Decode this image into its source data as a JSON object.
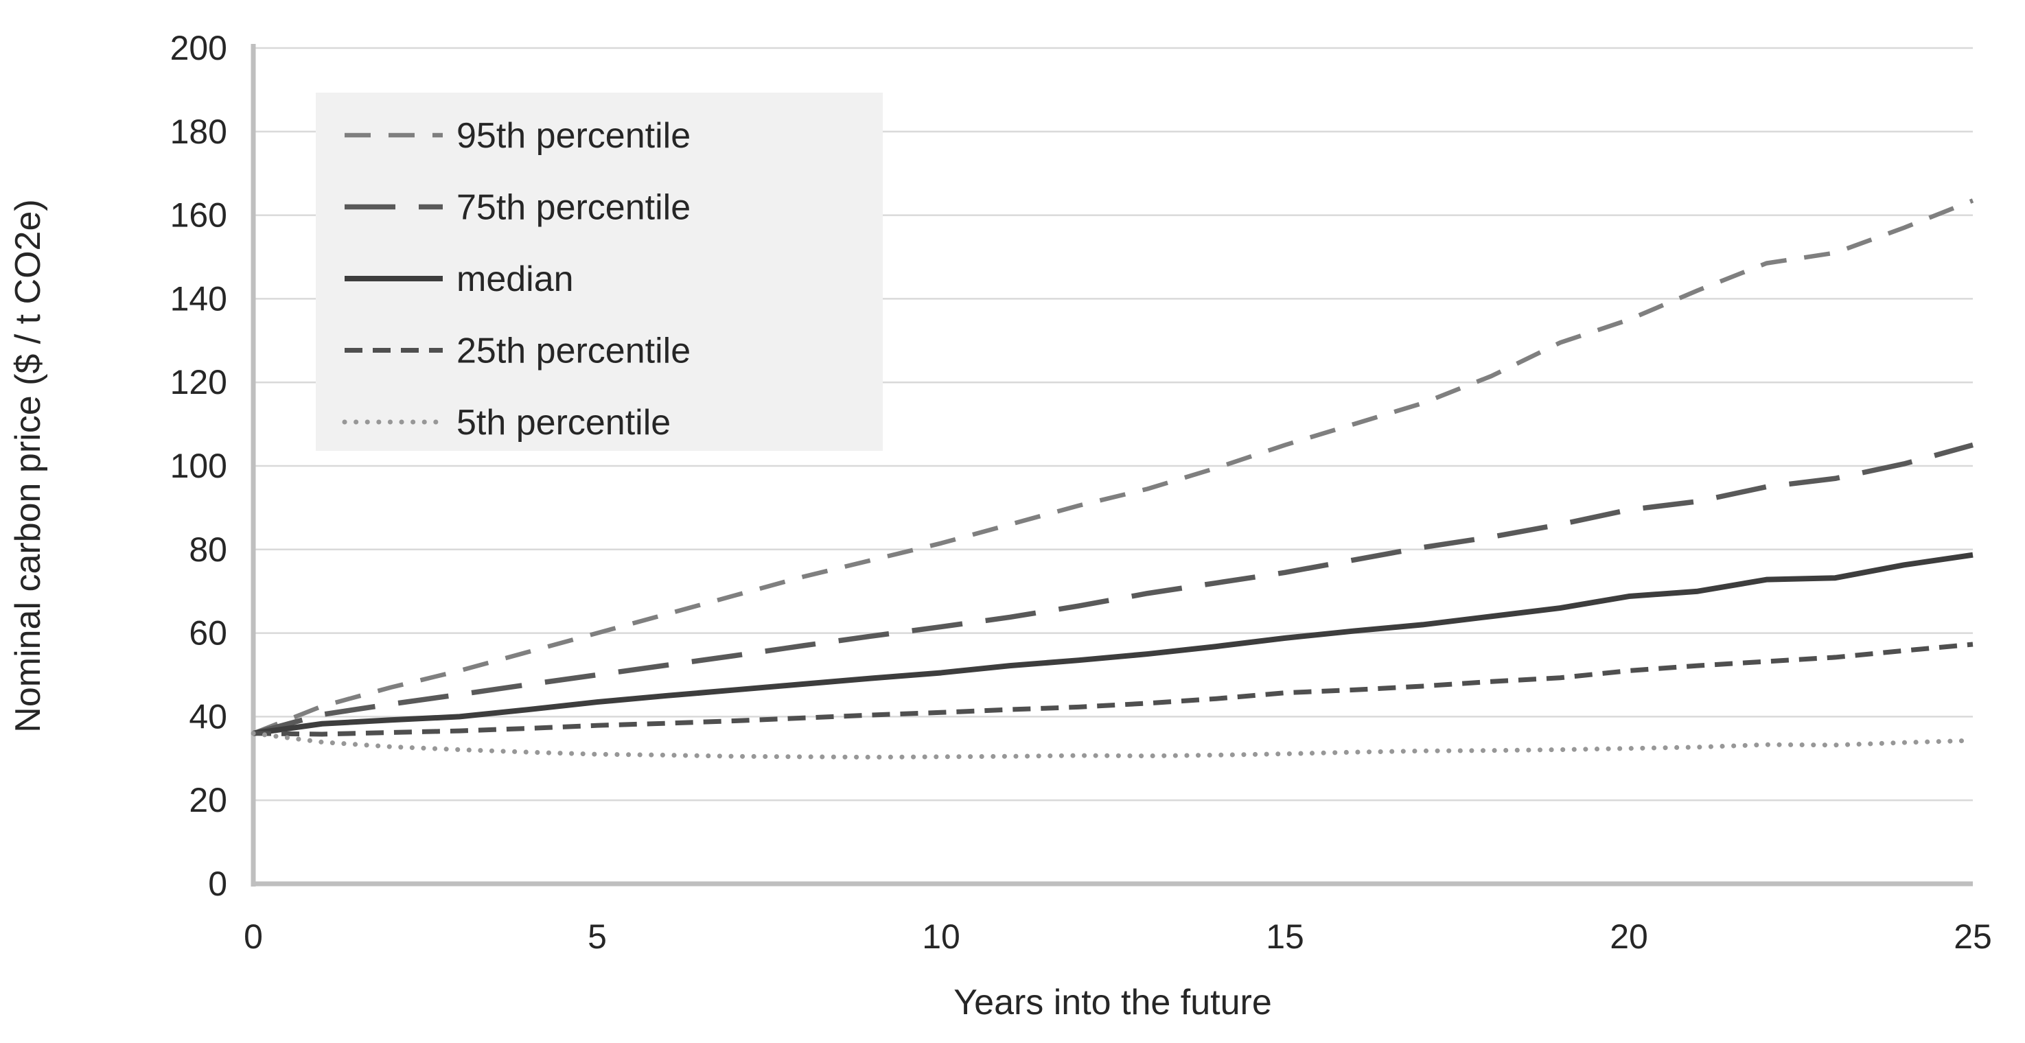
{
  "chart_data": {
    "type": "line",
    "title": "",
    "xlabel": "Years into the future",
    "ylabel": "Nominal carbon price ($ / t CO2e)",
    "xlim": [
      0,
      25
    ],
    "ylim": [
      0,
      200
    ],
    "x_ticks": [
      0,
      5,
      10,
      15,
      20,
      25
    ],
    "y_ticks": [
      0,
      20,
      40,
      60,
      80,
      100,
      120,
      140,
      160,
      180,
      200
    ],
    "grid": "horizontal-only",
    "legend_position": "upper-left-inside",
    "x": [
      0,
      1,
      2,
      3,
      4,
      5,
      6,
      7,
      8,
      9,
      10,
      11,
      12,
      13,
      14,
      15,
      16,
      17,
      18,
      19,
      20,
      21,
      22,
      23,
      24,
      25
    ],
    "series": [
      {
        "name": "95th percentile",
        "style": "dashed",
        "color": "#7f7f7f",
        "width": 6.5,
        "values": [
          36,
          42.5,
          47,
          51,
          55.5,
          60,
          64.5,
          69,
          73.5,
          77.5,
          81.5,
          86,
          90.5,
          94.5,
          99.5,
          105,
          110,
          115,
          121.5,
          129.5,
          135,
          142,
          148.5,
          151,
          157,
          163.5
        ]
      },
      {
        "name": "75th percentile",
        "style": "long-dash",
        "color": "#595959",
        "width": 7.5,
        "values": [
          36,
          40.5,
          43,
          45.3,
          47.7,
          50,
          52.3,
          54.6,
          57,
          59.3,
          61.5,
          63.8,
          66.5,
          69.5,
          72,
          74.5,
          77.5,
          80.5,
          83,
          86,
          89.5,
          91.5,
          95,
          97,
          100.5,
          105
        ]
      },
      {
        "name": "median",
        "style": "solid",
        "color": "#3d3d3d",
        "width": 8,
        "values": [
          36,
          38.3,
          39.2,
          40,
          41.7,
          43.5,
          45,
          46.4,
          47.8,
          49.2,
          50.5,
          52.2,
          53.5,
          55,
          56.8,
          58.8,
          60.5,
          62,
          64,
          66,
          68.8,
          70,
          72.8,
          73.2,
          76.3,
          78.7
        ]
      },
      {
        "name": "25th percentile",
        "style": "short-dash",
        "color": "#4f4f4f",
        "width": 7,
        "values": [
          36,
          35.8,
          36.2,
          36.6,
          37.2,
          37.9,
          38.4,
          39,
          39.7,
          40.4,
          41,
          41.7,
          42.3,
          43.2,
          44.3,
          45.7,
          46.4,
          47.3,
          48.4,
          49.3,
          51,
          52.2,
          53.2,
          54.2,
          55.8,
          57.3
        ]
      },
      {
        "name": "5th percentile",
        "style": "dotted",
        "color": "#979797",
        "width": 7,
        "values": [
          36,
          33.9,
          32.8,
          32.1,
          31.5,
          31,
          30.8,
          30.5,
          30.4,
          30.3,
          30.4,
          30.5,
          30.7,
          30.6,
          30.8,
          31.1,
          31.5,
          31.8,
          31.9,
          32.1,
          32.4,
          32.7,
          33.3,
          33.2,
          33.8,
          34.3
        ]
      }
    ],
    "colors": {
      "grid": "#d9d9d9",
      "axis": "#bfbfbf",
      "text": "#262626",
      "legend_bg": "#f1f1f1"
    }
  }
}
